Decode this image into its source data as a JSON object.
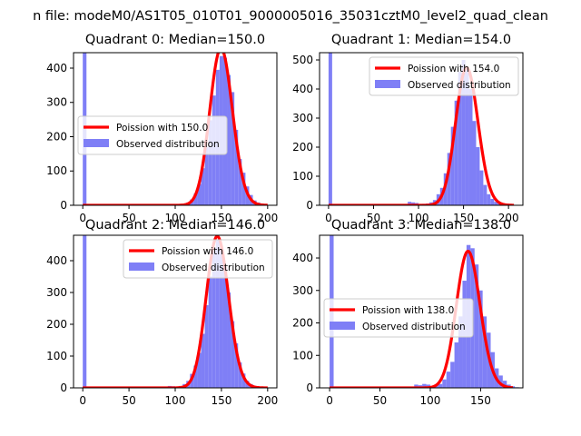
{
  "page": {
    "suptitle": "n file: modeM0/AS1T05_010T01_9000005016_35031cztM0_level2_quad_clean"
  },
  "colors": {
    "hist": "#7f7ff6",
    "curve": "#ff0000",
    "axis": "#000000",
    "background": "#ffffff"
  },
  "chart_data": [
    {
      "type": "bar",
      "title": "Quadrant 0: Median=150.0",
      "median": 150.0,
      "xlim": [
        -10,
        210
      ],
      "ylim": [
        0,
        445
      ],
      "xticks": [
        0,
        50,
        100,
        150,
        200
      ],
      "yticks": [
        0,
        100,
        200,
        300,
        400
      ],
      "bin_width": 4,
      "zero_spike": 445,
      "legend_position": "center-left",
      "legend": {
        "curve": "Poission with 150.0",
        "hist": "Observed distribution"
      },
      "bins": [
        [
          84,
          1
        ],
        [
          88,
          2
        ],
        [
          92,
          1
        ],
        [
          96,
          2
        ],
        [
          100,
          2
        ],
        [
          104,
          3
        ],
        [
          108,
          4
        ],
        [
          112,
          8
        ],
        [
          116,
          17
        ],
        [
          120,
          34
        ],
        [
          124,
          62
        ],
        [
          128,
          108
        ],
        [
          132,
          170
        ],
        [
          136,
          248
        ],
        [
          140,
          320
        ],
        [
          144,
          395
        ],
        [
          148,
          435
        ],
        [
          152,
          430
        ],
        [
          156,
          380
        ],
        [
          160,
          330
        ],
        [
          164,
          220
        ],
        [
          168,
          135
        ],
        [
          172,
          95
        ],
        [
          176,
          55
        ],
        [
          180,
          30
        ],
        [
          184,
          14
        ],
        [
          188,
          8
        ],
        [
          192,
          4
        ],
        [
          196,
          2
        ]
      ]
    },
    {
      "type": "bar",
      "title": "Quadrant 1: Median=154.0",
      "median": 154.0,
      "xlim": [
        -10,
        216
      ],
      "ylim": [
        0,
        525
      ],
      "xticks": [
        0,
        50,
        100,
        150,
        200
      ],
      "yticks": [
        0,
        100,
        200,
        300,
        400,
        500
      ],
      "bin_width": 4,
      "zero_spike": 525,
      "legend_position": "top-right",
      "legend": {
        "curve": "Poission with 154.0",
        "hist": "Observed distribution"
      },
      "bins": [
        [
          88,
          12
        ],
        [
          92,
          10
        ],
        [
          96,
          8
        ],
        [
          100,
          4
        ],
        [
          104,
          5
        ],
        [
          108,
          6
        ],
        [
          112,
          10
        ],
        [
          116,
          18
        ],
        [
          120,
          38
        ],
        [
          124,
          60
        ],
        [
          128,
          110
        ],
        [
          132,
          180
        ],
        [
          136,
          270
        ],
        [
          140,
          360
        ],
        [
          144,
          460
        ],
        [
          148,
          500
        ],
        [
          152,
          470
        ],
        [
          156,
          400
        ],
        [
          160,
          290
        ],
        [
          164,
          200
        ],
        [
          168,
          120
        ],
        [
          172,
          70
        ],
        [
          176,
          38
        ],
        [
          180,
          22
        ],
        [
          184,
          12
        ],
        [
          188,
          6
        ],
        [
          192,
          3
        ],
        [
          196,
          2
        ],
        [
          200,
          1
        ]
      ]
    },
    {
      "type": "bar",
      "title": "Quadrant 2: Median=146.0",
      "median": 146.0,
      "xlim": [
        -10,
        210
      ],
      "ylim": [
        0,
        480
      ],
      "xticks": [
        0,
        50,
        100,
        150,
        200
      ],
      "yticks": [
        0,
        100,
        200,
        300,
        400
      ],
      "bin_width": 4,
      "zero_spike": 480,
      "legend_position": "top-right",
      "legend": {
        "curve": "Poission with 146.0",
        "hist": "Observed distribution"
      },
      "bins": [
        [
          80,
          2
        ],
        [
          84,
          3
        ],
        [
          88,
          4
        ],
        [
          92,
          6
        ],
        [
          96,
          5
        ],
        [
          100,
          4
        ],
        [
          104,
          6
        ],
        [
          108,
          12
        ],
        [
          112,
          22
        ],
        [
          116,
          44
        ],
        [
          120,
          70
        ],
        [
          124,
          110
        ],
        [
          128,
          170
        ],
        [
          132,
          260
        ],
        [
          136,
          350
        ],
        [
          140,
          440
        ],
        [
          144,
          465
        ],
        [
          148,
          440
        ],
        [
          152,
          380
        ],
        [
          156,
          300
        ],
        [
          160,
          210
        ],
        [
          164,
          140
        ],
        [
          168,
          80
        ],
        [
          172,
          45
        ],
        [
          176,
          22
        ],
        [
          180,
          12
        ],
        [
          184,
          6
        ],
        [
          188,
          3
        ],
        [
          192,
          1
        ]
      ]
    },
    {
      "type": "bar",
      "title": "Quadrant 3: Median=138.0",
      "median": 138.0,
      "xlim": [
        -10,
        192
      ],
      "ylim": [
        0,
        470
      ],
      "xticks": [
        0,
        50,
        100,
        150
      ],
      "yticks": [
        0,
        100,
        200,
        300,
        400
      ],
      "bin_width": 4,
      "zero_spike": 470,
      "legend_position": "center-left",
      "legend": {
        "curve": "Poission with 138.0",
        "hist": "Observed distribution"
      },
      "bins": [
        [
          84,
          10
        ],
        [
          88,
          8
        ],
        [
          92,
          12
        ],
        [
          96,
          10
        ],
        [
          100,
          5
        ],
        [
          104,
          8
        ],
        [
          108,
          12
        ],
        [
          112,
          26
        ],
        [
          116,
          50
        ],
        [
          120,
          80
        ],
        [
          124,
          140
        ],
        [
          128,
          220
        ],
        [
          132,
          330
        ],
        [
          136,
          440
        ],
        [
          140,
          430
        ],
        [
          144,
          380
        ],
        [
          148,
          300
        ],
        [
          152,
          220
        ],
        [
          156,
          170
        ],
        [
          160,
          110
        ],
        [
          164,
          60
        ],
        [
          168,
          38
        ],
        [
          172,
          22
        ],
        [
          176,
          10
        ],
        [
          180,
          5
        ],
        [
          184,
          2
        ]
      ]
    }
  ]
}
